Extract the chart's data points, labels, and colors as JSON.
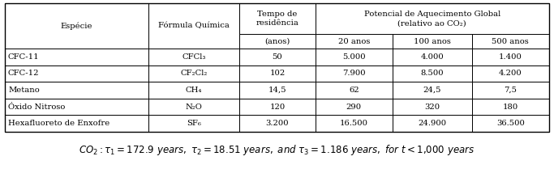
{
  "rows": [
    [
      "CFC-11",
      "CFCl₃",
      "50",
      "5.000",
      "4.000",
      "1.400"
    ],
    [
      "CFC-12",
      "CF₂Cl₂",
      "102",
      "7.900",
      "8.500",
      "4.200"
    ],
    [
      "Metano",
      "CH₄",
      "14,5",
      "62",
      "24,5",
      "7,5"
    ],
    [
      "Óxido Nitroso",
      "N₂O",
      "120",
      "290",
      "320",
      "180"
    ],
    [
      "Hexafluoreto de Enxofre",
      "SF₆",
      "3.200",
      "16.500",
      "24.900",
      "36.500"
    ]
  ],
  "bg_color": "#ffffff"
}
